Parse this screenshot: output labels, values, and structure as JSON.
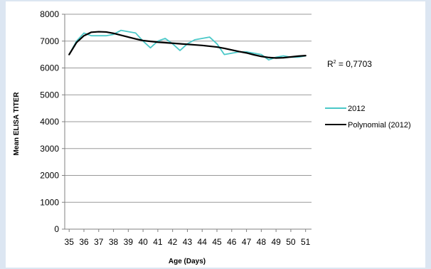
{
  "chart_data": {
    "type": "line",
    "title": "",
    "xlabel": "Age (Days)",
    "ylabel": "Mean ELISA TITER",
    "ylim": [
      0,
      8000
    ],
    "yticks": [
      0,
      1000,
      2000,
      3000,
      4000,
      5000,
      6000,
      7000,
      8000
    ],
    "x_tick_labels": [
      "35",
      "36",
      "37",
      "38",
      "39",
      "40",
      "41",
      "42",
      "43",
      "44",
      "45",
      "46",
      "47",
      "48",
      "49",
      "50",
      "51"
    ],
    "x_points": [
      35,
      35.5,
      36,
      36.5,
      37,
      37.5,
      38,
      38.5,
      39,
      39.5,
      40,
      40.5,
      41,
      41.5,
      42,
      42.5,
      43,
      43.5,
      44,
      44.5,
      45,
      45.5,
      46,
      46.5,
      47,
      47.5,
      48,
      48.5,
      49,
      49.5,
      50,
      50.5,
      51
    ],
    "grid": "horizontal",
    "legend_position": "right",
    "series": [
      {
        "name": "2012",
        "color": "#4bc8c8",
        "values": [
          6500,
          7000,
          7300,
          7200,
          7200,
          7200,
          7250,
          7400,
          7350,
          7300,
          7000,
          6750,
          7000,
          7100,
          6900,
          6650,
          6900,
          7050,
          7100,
          7150,
          6900,
          6500,
          6550,
          6600,
          6600,
          6550,
          6500,
          6300,
          6400,
          6450,
          6400,
          6400,
          6450
        ]
      },
      {
        "name": "Polynomial (2012)",
        "color": "#000000",
        "values": [
          6500,
          6950,
          7200,
          7330,
          7350,
          7340,
          7290,
          7220,
          7150,
          7080,
          7020,
          6990,
          6960,
          6940,
          6920,
          6900,
          6880,
          6860,
          6840,
          6810,
          6780,
          6730,
          6670,
          6610,
          6560,
          6490,
          6430,
          6390,
          6370,
          6380,
          6410,
          6440,
          6460
        ]
      }
    ],
    "annotation": {
      "text_prefix": "R",
      "text_sup": "2",
      "text_suffix": " = 0,7703"
    }
  }
}
